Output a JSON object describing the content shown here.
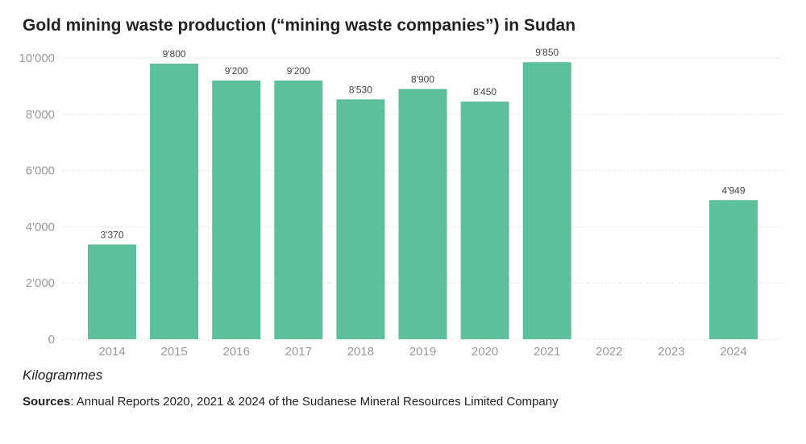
{
  "chart_data": {
    "type": "bar",
    "title": "Gold mining waste production (“mining waste companies”) in Sudan",
    "ylabel": "Kilogrammes",
    "xlabel": "",
    "categories": [
      "2014",
      "2015",
      "2016",
      "2017",
      "2018",
      "2019",
      "2020",
      "2021",
      "2022",
      "2023",
      "2024"
    ],
    "values": [
      3370,
      9800,
      9200,
      9200,
      8530,
      8900,
      8450,
      9850,
      null,
      null,
      4949
    ],
    "data_labels": [
      "3'370",
      "9'800",
      "9'200",
      "9'200",
      "8'530",
      "8'900",
      "8'450",
      "9'850",
      "",
      "",
      "4'949"
    ],
    "ylim": [
      0,
      10000
    ],
    "yticks": [
      0,
      2000,
      4000,
      6000,
      8000,
      10000
    ],
    "ytick_labels": [
      "0",
      "2'000",
      "4'000",
      "6'000",
      "8'000",
      "10'000"
    ],
    "grid": true,
    "bar_color": "#5cc09a"
  },
  "source": {
    "label": "Sources",
    "text": ": Annual Reports 2020, 2021 & 2024 of the Sudanese Mineral Resources Limited Company"
  }
}
